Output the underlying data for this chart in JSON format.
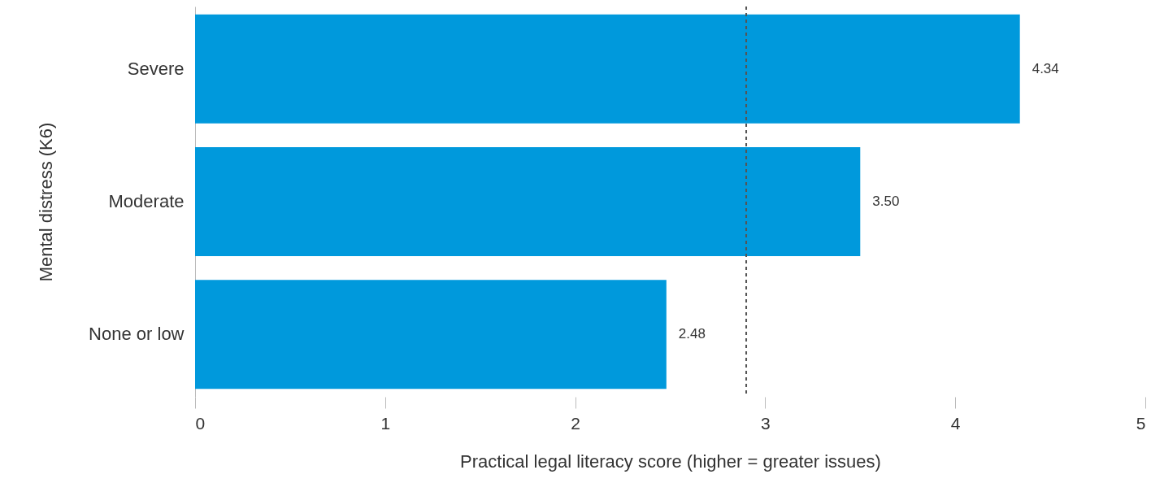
{
  "chart_data": {
    "type": "bar",
    "orientation": "horizontal",
    "xlabel": "Practical legal literacy score (higher = greater issues)",
    "ylabel": "Mental distress (K6)",
    "categories": [
      "Severe",
      "Moderate",
      "None or low"
    ],
    "values": [
      4.34,
      3.5,
      2.48
    ],
    "color": "#0099dc",
    "value_labels": [
      "4.34",
      "3.50",
      "2.48"
    ],
    "xlim": [
      0,
      5
    ],
    "xticks": [
      0,
      1,
      2,
      3,
      4,
      5
    ],
    "grid": false,
    "ref_lines": [
      {
        "axis": "x",
        "value": 2.9,
        "color": "#555555",
        "line_style": "dashed"
      }
    ]
  }
}
